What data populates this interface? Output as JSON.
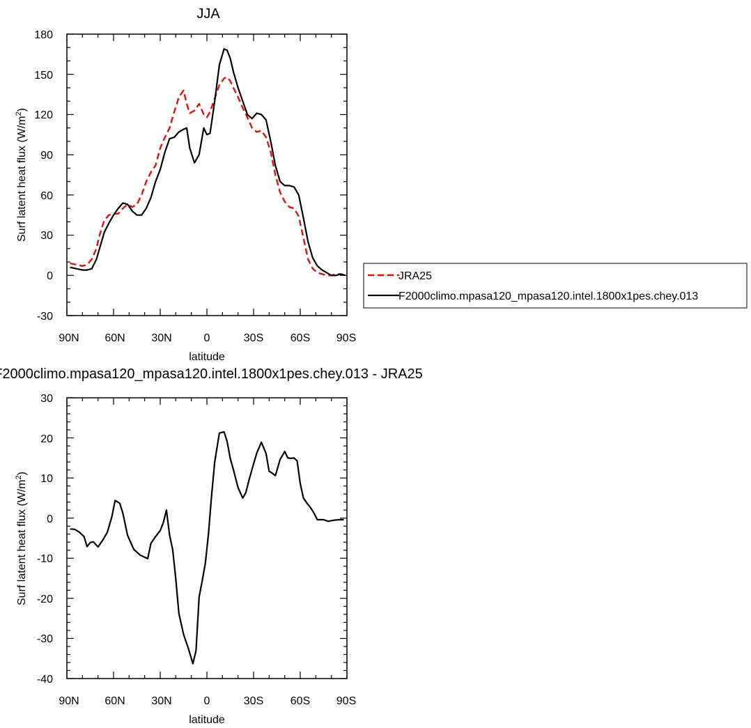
{
  "charts": {
    "top": {
      "title": "JJA",
      "xlabel": "latitude",
      "ylabel_main": "Surf latent heat flux (W/m",
      "ylabel_sup": "2",
      "ylabel_end": ")",
      "yticks": [
        "180",
        "150",
        "120",
        "90",
        "60",
        "30",
        "0",
        "-30"
      ],
      "xticks": [
        "90N",
        "60N",
        "30N",
        "0",
        "30S",
        "60S",
        "90S"
      ]
    },
    "bottom": {
      "title": "F2000climo.mpasa120_mpasa120.intel.1800x1pes.chey.013 - JRA25",
      "xlabel": "latitude",
      "ylabel_main": "Surf latent heat flux (W/m",
      "ylabel_sup": "2",
      "ylabel_end": ")",
      "yticks": [
        "30",
        "20",
        "10",
        "0",
        "-10",
        "-20",
        "-30",
        "-40"
      ],
      "xticks": [
        "90N",
        "60N",
        "30N",
        "0",
        "30S",
        "60S",
        "90S"
      ]
    }
  },
  "legend": {
    "items": [
      {
        "label": "JRA25",
        "color": "#e01010",
        "dash": true
      },
      {
        "label": "F2000climo.mpasa120_mpasa120.intel.1800x1pes.chey.013",
        "color": "#000000",
        "dash": false
      }
    ]
  },
  "chart_data": [
    {
      "type": "line",
      "title": "JJA",
      "xlabel": "latitude",
      "ylabel": "Surf latent heat flux (W/m2)",
      "xlim": [
        90,
        -90
      ],
      "ylim": [
        -30,
        180
      ],
      "x_tick_labels": [
        "90N",
        "60N",
        "30N",
        "0",
        "30S",
        "60S",
        "90S"
      ],
      "legend_position": "right",
      "series": [
        {
          "name": "JRA25",
          "color": "#e01010",
          "style": "dashed",
          "x": [
            88,
            84,
            80,
            77,
            74,
            71,
            69,
            66,
            63,
            60,
            57,
            54,
            51,
            48,
            45,
            42,
            39,
            36,
            33,
            30,
            27,
            24,
            21,
            18,
            15,
            13,
            11,
            8,
            5,
            2,
            0,
            -2,
            -5,
            -8,
            -11,
            -13,
            -15,
            -17,
            -20,
            -23,
            -26,
            -29,
            -32,
            -35,
            -38,
            -41,
            -44,
            -47,
            -50,
            -53,
            -56,
            -59,
            -62,
            -65,
            -68,
            -71,
            -74,
            -77,
            -80,
            -83,
            -86,
            -89
          ],
          "y": [
            9,
            8,
            7,
            8,
            12,
            20,
            30,
            41,
            45,
            46,
            46,
            50,
            53,
            51,
            53,
            60,
            70,
            77,
            82,
            95,
            103,
            110,
            122,
            133,
            138,
            128,
            121,
            123,
            128,
            120,
            118,
            122,
            132,
            142,
            147,
            148,
            145,
            140,
            133,
            125,
            118,
            110,
            107,
            108,
            103,
            92,
            75,
            62,
            55,
            51,
            50,
            44,
            28,
            12,
            5,
            2,
            1,
            0,
            0,
            1,
            1,
            0
          ]
        },
        {
          "name": "F2000climo.mpasa120_mpasa120.intel.1800x1pes.chey.013",
          "color": "#000000",
          "style": "solid",
          "x": [
            88,
            84,
            80,
            77,
            74,
            71,
            69,
            66,
            63,
            60,
            57,
            54,
            51,
            48,
            45,
            42,
            39,
            36,
            33,
            30,
            27,
            24,
            21,
            18,
            15,
            13,
            11,
            8,
            5,
            2,
            0,
            -2,
            -5,
            -8,
            -11,
            -13,
            -15,
            -17,
            -20,
            -23,
            -26,
            -29,
            -32,
            -35,
            -38,
            -41,
            -44,
            -47,
            -50,
            -53,
            -56,
            -59,
            -62,
            -65,
            -68,
            -71,
            -74,
            -77,
            -80,
            -83,
            -86,
            -89
          ],
          "y": [
            6,
            5,
            4,
            4,
            5,
            12,
            20,
            32,
            39,
            45,
            50,
            54,
            53,
            48,
            45,
            45,
            50,
            58,
            70,
            79,
            92,
            102,
            103,
            107,
            109,
            110,
            95,
            84,
            90,
            110,
            105,
            106,
            130,
            157,
            169,
            168,
            162,
            152,
            140,
            130,
            120,
            117,
            121,
            120,
            116,
            100,
            82,
            70,
            67,
            67,
            66,
            60,
            43,
            25,
            13,
            7,
            4,
            2,
            0,
            0,
            1,
            0
          ]
        }
      ]
    },
    {
      "type": "line",
      "title": "F2000climo.mpasa120_mpasa120.intel.1800x1pes.chey.013 - JRA25",
      "xlabel": "latitude",
      "ylabel": "Surf latent heat flux (W/m2)",
      "xlim": [
        90,
        -90
      ],
      "ylim": [
        -40,
        30
      ],
      "x_tick_labels": [
        "90N",
        "60N",
        "30N",
        "0",
        "30S",
        "60S",
        "90S"
      ],
      "series": [
        {
          "color": "#000000",
          "style": "solid",
          "x": [
            88,
            85,
            82,
            79,
            77,
            75,
            73,
            70,
            67,
            64,
            61,
            59,
            56,
            54,
            51,
            47,
            43,
            38,
            36,
            33,
            30,
            28,
            26,
            24,
            22,
            20,
            18,
            15,
            12,
            9,
            7,
            5,
            3,
            1,
            -1,
            -3,
            -5,
            -8,
            -11,
            -13,
            -15,
            -17,
            -20,
            -23,
            -25,
            -27,
            -29,
            -32,
            -35,
            -38,
            -40,
            -42,
            -44,
            -47,
            -50,
            -52,
            -54,
            -56,
            -58,
            -60,
            -62,
            -64,
            -66,
            -68,
            -71,
            -75,
            -78,
            -82,
            -85,
            -88
          ],
          "y": [
            -2.7,
            -2.8,
            -3.5,
            -4.6,
            -7.1,
            -6.1,
            -5.9,
            -7.2,
            -5.5,
            -3.5,
            0.5,
            4.4,
            3.7,
            1.2,
            -4.3,
            -7.8,
            -9.2,
            -10.1,
            -6.3,
            -4.6,
            -3.1,
            -1.1,
            2.0,
            -4.2,
            -7.9,
            -15.1,
            -23.8,
            -29.0,
            -32.4,
            -36.3,
            -33.0,
            -19.7,
            -15.6,
            -11.2,
            -4.0,
            5.6,
            14.0,
            21.2,
            21.5,
            19.1,
            14.9,
            12.1,
            7.6,
            5.0,
            6.3,
            9.4,
            12.2,
            16.2,
            18.9,
            16.1,
            11.7,
            11.2,
            10.6,
            14.6,
            16.6,
            15.0,
            14.9,
            15.0,
            14.3,
            8.6,
            5.0,
            3.9,
            2.9,
            1.8,
            -0.4,
            -0.4,
            -0.8,
            -0.5,
            -0.4,
            -0.4
          ]
        }
      ]
    }
  ]
}
